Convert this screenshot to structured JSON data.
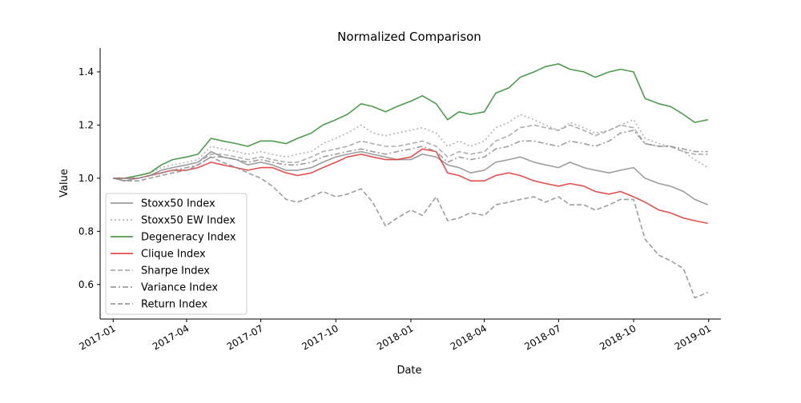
{
  "chart_data": {
    "type": "line",
    "title": "Normalized Comparison",
    "xlabel": "Date",
    "ylabel": "Value",
    "x_ticks": [
      "2017-01",
      "2017-04",
      "2017-07",
      "2017-10",
      "2018-01",
      "2018-04",
      "2018-07",
      "2018-10",
      "2019-01"
    ],
    "y_ticks": [
      "0.6",
      "0.8",
      "1.0",
      "1.2",
      "1.4"
    ],
    "xlim": [
      "2016-12-16",
      "2019-01-16"
    ],
    "ylim": [
      0.47,
      1.49
    ],
    "grid": false,
    "legend_position": "lower-left",
    "x": [
      "2017-01-01",
      "2017-01-15",
      "2017-02-01",
      "2017-02-15",
      "2017-03-01",
      "2017-03-15",
      "2017-04-01",
      "2017-04-15",
      "2017-05-01",
      "2017-05-15",
      "2017-06-01",
      "2017-06-15",
      "2017-07-01",
      "2017-07-15",
      "2017-08-01",
      "2017-08-15",
      "2017-09-01",
      "2017-09-15",
      "2017-10-01",
      "2017-10-15",
      "2017-11-01",
      "2017-11-15",
      "2017-12-01",
      "2017-12-15",
      "2018-01-01",
      "2018-01-15",
      "2018-02-01",
      "2018-02-15",
      "2018-03-01",
      "2018-03-15",
      "2018-04-01",
      "2018-04-15",
      "2018-05-01",
      "2018-05-15",
      "2018-06-01",
      "2018-06-15",
      "2018-07-01",
      "2018-07-15",
      "2018-08-01",
      "2018-08-15",
      "2018-09-01",
      "2018-09-15",
      "2018-10-01",
      "2018-10-15",
      "2018-11-01",
      "2018-11-15",
      "2018-12-01",
      "2018-12-15",
      "2018-12-31"
    ],
    "series": [
      {
        "name": "Stoxx50 Index",
        "color": "#8c8c8c",
        "dash": "solid",
        "values": [
          1.0,
          0.99,
          1.0,
          1.01,
          1.03,
          1.04,
          1.05,
          1.06,
          1.1,
          1.08,
          1.07,
          1.05,
          1.06,
          1.05,
          1.03,
          1.03,
          1.04,
          1.06,
          1.08,
          1.09,
          1.1,
          1.09,
          1.08,
          1.07,
          1.07,
          1.09,
          1.08,
          1.05,
          1.04,
          1.02,
          1.03,
          1.06,
          1.07,
          1.08,
          1.06,
          1.05,
          1.04,
          1.06,
          1.04,
          1.03,
          1.02,
          1.03,
          1.04,
          1.0,
          0.98,
          0.97,
          0.95,
          0.92,
          0.9
        ]
      },
      {
        "name": "Stoxx50 EW Index",
        "color": "#a6a6a6",
        "dash": "dotted",
        "values": [
          1.0,
          1.0,
          1.01,
          1.02,
          1.04,
          1.05,
          1.06,
          1.07,
          1.12,
          1.11,
          1.1,
          1.09,
          1.1,
          1.09,
          1.08,
          1.09,
          1.1,
          1.13,
          1.15,
          1.17,
          1.2,
          1.17,
          1.16,
          1.17,
          1.18,
          1.19,
          1.17,
          1.12,
          1.14,
          1.12,
          1.14,
          1.19,
          1.21,
          1.24,
          1.22,
          1.2,
          1.18,
          1.21,
          1.19,
          1.17,
          1.18,
          1.2,
          1.22,
          1.15,
          1.13,
          1.12,
          1.1,
          1.07,
          1.04
        ]
      },
      {
        "name": "Degeneracy Index",
        "color": "#2e8b2e",
        "dash": "solid",
        "values": [
          1.0,
          1.0,
          1.01,
          1.02,
          1.05,
          1.07,
          1.08,
          1.09,
          1.15,
          1.14,
          1.13,
          1.12,
          1.14,
          1.14,
          1.13,
          1.15,
          1.17,
          1.2,
          1.22,
          1.24,
          1.28,
          1.27,
          1.25,
          1.27,
          1.29,
          1.31,
          1.28,
          1.22,
          1.25,
          1.24,
          1.25,
          1.32,
          1.34,
          1.38,
          1.4,
          1.42,
          1.43,
          1.41,
          1.4,
          1.38,
          1.4,
          1.41,
          1.4,
          1.3,
          1.28,
          1.27,
          1.24,
          1.21,
          1.22
        ]
      },
      {
        "name": "Clique Index",
        "color": "#e03030",
        "dash": "solid",
        "values": [
          1.0,
          1.0,
          1.0,
          1.01,
          1.02,
          1.03,
          1.03,
          1.04,
          1.06,
          1.05,
          1.04,
          1.03,
          1.04,
          1.04,
          1.02,
          1.01,
          1.02,
          1.04,
          1.06,
          1.08,
          1.09,
          1.08,
          1.07,
          1.07,
          1.08,
          1.11,
          1.1,
          1.02,
          1.01,
          0.99,
          0.99,
          1.01,
          1.02,
          1.01,
          0.99,
          0.98,
          0.97,
          0.98,
          0.97,
          0.95,
          0.94,
          0.95,
          0.93,
          0.91,
          0.88,
          0.87,
          0.85,
          0.84,
          0.83
        ]
      },
      {
        "name": "Sharpe Index",
        "color": "#a0a0a0",
        "dash": "dashed",
        "values": [
          1.0,
          1.0,
          1.0,
          1.01,
          1.03,
          1.04,
          1.05,
          1.06,
          1.09,
          1.09,
          1.08,
          1.07,
          1.08,
          1.07,
          1.06,
          1.06,
          1.08,
          1.1,
          1.11,
          1.12,
          1.14,
          1.13,
          1.12,
          1.12,
          1.13,
          1.14,
          1.12,
          1.08,
          1.1,
          1.09,
          1.1,
          1.14,
          1.16,
          1.19,
          1.2,
          1.19,
          1.18,
          1.2,
          1.18,
          1.16,
          1.18,
          1.2,
          1.19,
          1.13,
          1.12,
          1.12,
          1.1,
          1.09,
          1.09
        ]
      },
      {
        "name": "Variance Index",
        "color": "#8c8c8c",
        "dash": "dashdot",
        "values": [
          1.0,
          1.0,
          1.0,
          1.01,
          1.02,
          1.03,
          1.04,
          1.05,
          1.08,
          1.08,
          1.07,
          1.06,
          1.07,
          1.06,
          1.05,
          1.05,
          1.06,
          1.08,
          1.09,
          1.1,
          1.11,
          1.1,
          1.09,
          1.1,
          1.11,
          1.12,
          1.1,
          1.06,
          1.08,
          1.07,
          1.08,
          1.11,
          1.12,
          1.14,
          1.14,
          1.13,
          1.12,
          1.14,
          1.13,
          1.12,
          1.14,
          1.17,
          1.18,
          1.13,
          1.12,
          1.12,
          1.11,
          1.1,
          1.1
        ]
      },
      {
        "name": "Return Index",
        "color": "#8c8c8c",
        "dash": "dashed",
        "values": [
          1.0,
          0.99,
          0.99,
          1.0,
          1.01,
          1.02,
          1.03,
          1.05,
          1.08,
          1.06,
          1.04,
          1.02,
          1.0,
          0.97,
          0.92,
          0.91,
          0.93,
          0.95,
          0.93,
          0.94,
          0.96,
          0.91,
          0.82,
          0.85,
          0.88,
          0.86,
          0.93,
          0.84,
          0.85,
          0.87,
          0.86,
          0.9,
          0.91,
          0.92,
          0.93,
          0.91,
          0.93,
          0.9,
          0.9,
          0.88,
          0.9,
          0.92,
          0.92,
          0.77,
          0.71,
          0.69,
          0.66,
          0.55,
          0.57
        ]
      }
    ]
  }
}
